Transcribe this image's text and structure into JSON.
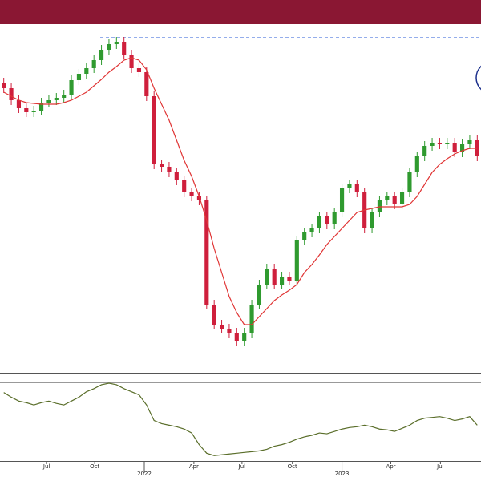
{
  "chart_data": [
    {
      "type": "candlestick",
      "x": [
        0,
        1,
        2,
        3,
        4,
        5,
        6,
        7,
        8,
        9,
        10,
        11,
        12,
        13,
        14,
        15,
        16,
        17,
        18,
        19,
        20,
        21,
        22,
        23,
        24,
        25,
        26,
        27,
        28,
        29,
        30,
        31,
        32,
        33,
        34,
        35,
        36,
        37,
        38,
        39,
        40,
        41,
        42,
        43,
        44,
        45,
        46,
        47,
        48,
        49,
        50,
        51,
        52,
        53,
        54,
        55,
        56,
        57,
        58,
        59,
        60,
        61,
        62,
        63
      ],
      "open": [
        362,
        355,
        340,
        330,
        325,
        327,
        337,
        340,
        343,
        347,
        365,
        373,
        380,
        390,
        403,
        410,
        413,
        397,
        380,
        375,
        345,
        260,
        257,
        250,
        240,
        225,
        220,
        215,
        85,
        60,
        55,
        50,
        40,
        50,
        85,
        110,
        130,
        110,
        120,
        115,
        165,
        175,
        180,
        195,
        185,
        200,
        230,
        235,
        225,
        180,
        200,
        215,
        220,
        210,
        225,
        250,
        270,
        283,
        287,
        285,
        287,
        275,
        285,
        290
      ],
      "high": [
        368,
        361,
        346,
        336,
        333,
        343,
        346,
        349,
        353,
        371,
        379,
        386,
        396,
        409,
        416,
        419,
        419,
        403,
        386,
        381,
        351,
        266,
        263,
        256,
        246,
        231,
        226,
        221,
        91,
        66,
        61,
        56,
        56,
        91,
        116,
        136,
        136,
        126,
        126,
        171,
        181,
        186,
        201,
        201,
        206,
        236,
        241,
        241,
        231,
        206,
        221,
        226,
        226,
        231,
        256,
        276,
        289,
        293,
        293,
        293,
        293,
        291,
        296,
        296
      ],
      "low": [
        349,
        334,
        324,
        319,
        319,
        321,
        331,
        334,
        337,
        341,
        359,
        367,
        374,
        384,
        397,
        404,
        391,
        374,
        369,
        339,
        254,
        251,
        244,
        234,
        219,
        214,
        209,
        79,
        54,
        49,
        44,
        34,
        34,
        44,
        79,
        104,
        104,
        104,
        109,
        109,
        159,
        169,
        174,
        179,
        179,
        194,
        224,
        219,
        174,
        174,
        194,
        209,
        204,
        204,
        219,
        244,
        264,
        277,
        279,
        279,
        269,
        269,
        279,
        264
      ],
      "close": [
        355,
        340,
        330,
        325,
        327,
        337,
        340,
        343,
        347,
        365,
        373,
        380,
        390,
        403,
        410,
        413,
        397,
        380,
        375,
        345,
        260,
        257,
        250,
        240,
        225,
        220,
        215,
        85,
        60,
        55,
        50,
        40,
        50,
        85,
        110,
        130,
        110,
        120,
        115,
        165,
        175,
        180,
        195,
        185,
        200,
        230,
        235,
        225,
        180,
        200,
        215,
        220,
        210,
        225,
        250,
        270,
        283,
        287,
        285,
        287,
        275,
        285,
        290,
        270
      ],
      "up_color": "#2f9a2f",
      "down_color": "#cf1f3c",
      "series": [
        {
          "color": "#e03535",
          "values": [
            350,
            345,
            340,
            337,
            336,
            335,
            335,
            335,
            337,
            340,
            345,
            350,
            358,
            366,
            375,
            382,
            390,
            393,
            390,
            378,
            355,
            335,
            315,
            290,
            265,
            245,
            220,
            190,
            155,
            125,
            95,
            75,
            60,
            60,
            70,
            80,
            90,
            97,
            103,
            110,
            125,
            135,
            147,
            160,
            170,
            180,
            190,
            200,
            203,
            205,
            207,
            207,
            207,
            207,
            210,
            220,
            235,
            250,
            260,
            267,
            273,
            277,
            280,
            280
          ]
        }
      ],
      "reference_line": 418,
      "xlim": [
        -0.5,
        63.5
      ],
      "ylim": [
        0,
        433
      ],
      "xticks": [
        {
          "value": 5.7,
          "label": "Jul"
        },
        {
          "value": 12.1,
          "label": "Oct"
        },
        {
          "value": 18.7,
          "label": "2022"
        },
        {
          "value": 25.3,
          "label": "Apr"
        },
        {
          "value": 31.7,
          "label": "Jul"
        },
        {
          "value": 38.4,
          "label": "Oct"
        },
        {
          "value": 45.0,
          "label": "2023"
        },
        {
          "value": 51.5,
          "label": "Apr"
        },
        {
          "value": 58.1,
          "label": "Jul"
        }
      ]
    },
    {
      "type": "line",
      "series": [
        {
          "color": "#5a6e2a",
          "values": [
            88,
            82,
            77,
            75,
            72,
            75,
            77,
            74,
            72,
            77,
            82,
            89,
            93,
            98,
            100,
            98,
            93,
            89,
            85,
            72,
            52,
            48,
            46,
            44,
            41,
            36,
            21,
            10,
            7,
            8,
            9,
            10,
            11,
            12,
            13,
            15,
            19,
            21,
            24,
            28,
            31,
            33,
            36,
            35,
            38,
            41,
            43,
            44,
            46,
            44,
            41,
            40,
            38,
            42,
            46,
            52,
            55,
            56,
            57,
            55,
            52,
            54,
            57,
            46
          ]
        }
      ],
      "xlim": [
        -0.5,
        63.5
      ],
      "ylim": [
        0,
        100
      ]
    }
  ]
}
